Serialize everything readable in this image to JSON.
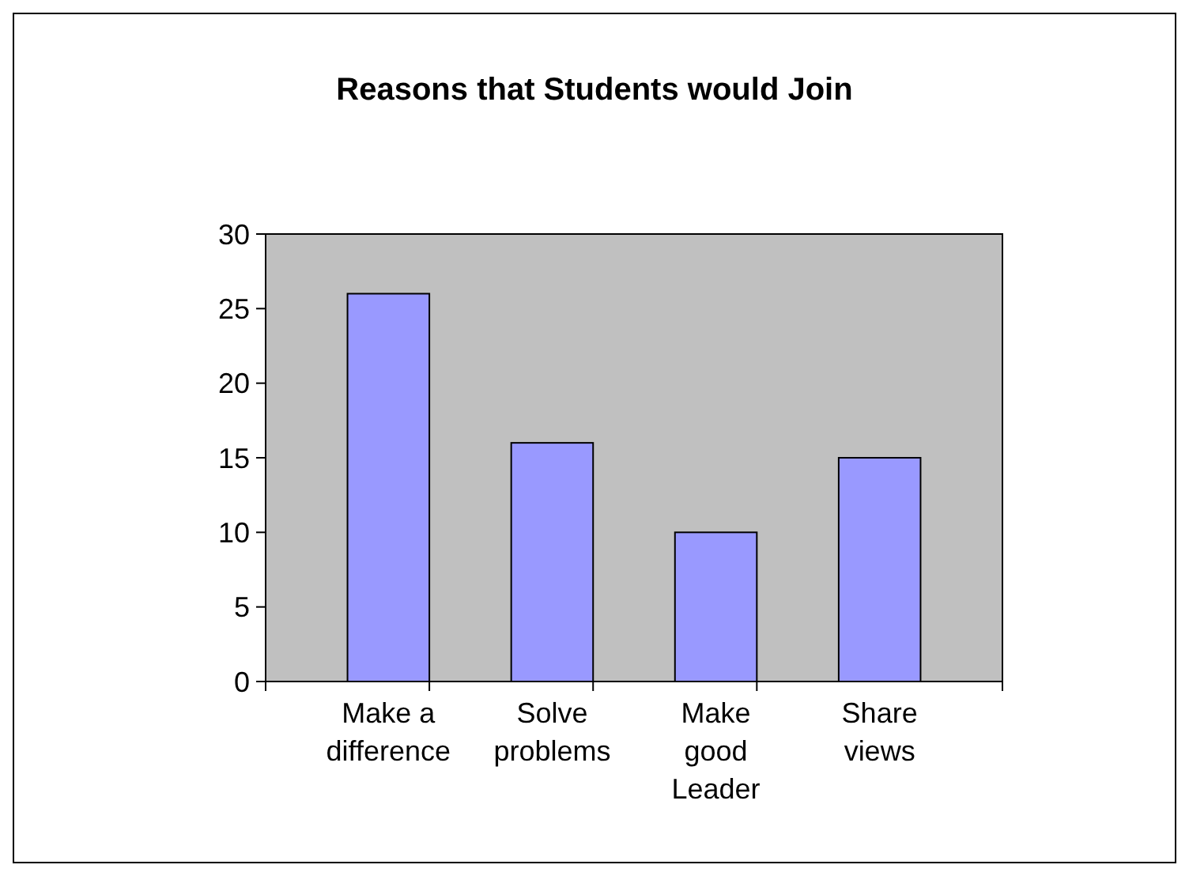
{
  "chart_data": {
    "type": "bar",
    "title": "Reasons that Students would Join",
    "categories": [
      "Make a difference",
      "Solve problems",
      "Make good Leader",
      "Share views"
    ],
    "values": [
      26,
      16,
      10,
      15
    ],
    "color": "#9999ff",
    "ylim": [
      0,
      30
    ],
    "yticks": [
      0,
      5,
      10,
      15,
      20,
      25,
      30
    ],
    "grid": false
  }
}
